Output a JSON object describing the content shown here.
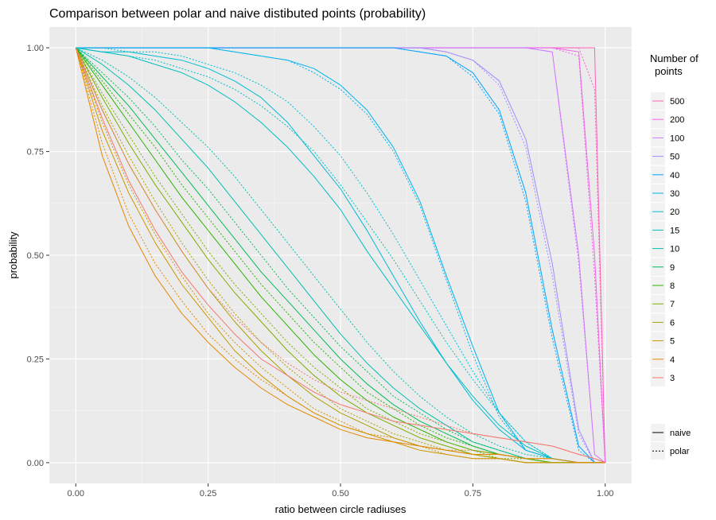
{
  "chart_data": {
    "type": "line",
    "title": "Comparison between polar and naive distibuted points (probability)",
    "xlabel": "ratio between circle radiuses",
    "ylabel": "probability",
    "xlim": [
      -0.05,
      1.05
    ],
    "ylim": [
      -0.05,
      1.05
    ],
    "x_ticks": [
      0,
      0.25,
      0.5,
      0.75,
      1
    ],
    "x_tick_labels": [
      "0.00",
      "0.25",
      "0.50",
      "0.75",
      "1.00"
    ],
    "y_ticks": [
      0,
      0.25,
      0.5,
      0.75,
      1
    ],
    "y_tick_labels": [
      "0.00",
      "0.25",
      "0.50",
      "0.75",
      "1.00"
    ],
    "grid": true,
    "legend_color_title_lines": [
      "Number of",
      "points"
    ],
    "legend_placement": "right",
    "color_legend": [
      {
        "label": "500",
        "color": "#FF62BC"
      },
      {
        "label": "200",
        "color": "#F066EA"
      },
      {
        "label": "100",
        "color": "#D078FF"
      },
      {
        "label": "50",
        "color": "#A58AFF"
      },
      {
        "label": "40",
        "color": "#00A5FF"
      },
      {
        "label": "30",
        "color": "#00B4EF"
      },
      {
        "label": "20",
        "color": "#00BCD8"
      },
      {
        "label": "15",
        "color": "#00BFC4"
      },
      {
        "label": "10",
        "color": "#00C0AF"
      },
      {
        "label": "9",
        "color": "#00BC56"
      },
      {
        "label": "8",
        "color": "#29B400"
      },
      {
        "label": "7",
        "color": "#7CAE00"
      },
      {
        "label": "6",
        "color": "#ABA300"
      },
      {
        "label": "5",
        "color": "#CD9600"
      },
      {
        "label": "4",
        "color": "#E58700"
      },
      {
        "label": "3",
        "color": "#F8766D"
      }
    ],
    "linetype_legend": [
      {
        "label": "naive",
        "dash": "solid"
      },
      {
        "label": "polar",
        "dash": "dotted"
      }
    ],
    "x": [
      0,
      0.05,
      0.1,
      0.15,
      0.2,
      0.25,
      0.3,
      0.35,
      0.4,
      0.45,
      0.5,
      0.55,
      0.6,
      0.65,
      0.7,
      0.75,
      0.8,
      0.85,
      0.9,
      0.95,
      0.98,
      1
    ],
    "series": [
      {
        "name": "500 naive",
        "points_count": "500",
        "linetype": "naive",
        "values": [
          1.0,
          1.0,
          1.0,
          1.0,
          1.0,
          1.0,
          1.0,
          1.0,
          1.0,
          1.0,
          1.0,
          1.0,
          1.0,
          1.0,
          1.0,
          1.0,
          1.0,
          1.0,
          1.0,
          1.0,
          1.0,
          0.0
        ]
      },
      {
        "name": "500 polar",
        "points_count": "500",
        "linetype": "polar",
        "values": [
          1.0,
          1.0,
          1.0,
          1.0,
          1.0,
          1.0,
          1.0,
          1.0,
          1.0,
          1.0,
          1.0,
          1.0,
          1.0,
          1.0,
          1.0,
          1.0,
          1.0,
          1.0,
          1.0,
          1.0,
          0.9,
          0.0
        ]
      },
      {
        "name": "200 naive",
        "points_count": "200",
        "linetype": "naive",
        "values": [
          1.0,
          1.0,
          1.0,
          1.0,
          1.0,
          1.0,
          1.0,
          1.0,
          1.0,
          1.0,
          1.0,
          1.0,
          1.0,
          1.0,
          1.0,
          1.0,
          1.0,
          1.0,
          1.0,
          0.99,
          0.5,
          0.0
        ]
      },
      {
        "name": "200 polar",
        "points_count": "200",
        "linetype": "polar",
        "values": [
          1.0,
          1.0,
          1.0,
          1.0,
          1.0,
          1.0,
          1.0,
          1.0,
          1.0,
          1.0,
          1.0,
          1.0,
          1.0,
          1.0,
          1.0,
          1.0,
          1.0,
          1.0,
          1.0,
          0.98,
          0.45,
          0.0
        ]
      },
      {
        "name": "100 naive",
        "points_count": "100",
        "linetype": "naive",
        "values": [
          1.0,
          1.0,
          1.0,
          1.0,
          1.0,
          1.0,
          1.0,
          1.0,
          1.0,
          1.0,
          1.0,
          1.0,
          1.0,
          1.0,
          1.0,
          1.0,
          1.0,
          1.0,
          0.99,
          0.5,
          0.02,
          0.0
        ]
      },
      {
        "name": "100 polar",
        "points_count": "100",
        "linetype": "polar",
        "values": [
          1.0,
          1.0,
          1.0,
          1.0,
          1.0,
          1.0,
          1.0,
          1.0,
          1.0,
          1.0,
          1.0,
          1.0,
          1.0,
          1.0,
          1.0,
          1.0,
          1.0,
          1.0,
          0.99,
          0.48,
          0.02,
          0.0
        ]
      },
      {
        "name": "50 naive",
        "points_count": "50",
        "linetype": "naive",
        "values": [
          1.0,
          1.0,
          1.0,
          1.0,
          1.0,
          1.0,
          1.0,
          1.0,
          1.0,
          1.0,
          1.0,
          1.0,
          1.0,
          1.0,
          0.99,
          0.97,
          0.92,
          0.78,
          0.48,
          0.08,
          0.0,
          0.0
        ]
      },
      {
        "name": "50 polar",
        "points_count": "50",
        "linetype": "polar",
        "values": [
          1.0,
          1.0,
          1.0,
          1.0,
          1.0,
          1.0,
          1.0,
          1.0,
          1.0,
          1.0,
          1.0,
          1.0,
          1.0,
          1.0,
          0.99,
          0.97,
          0.91,
          0.76,
          0.45,
          0.07,
          0.0,
          0.0
        ]
      },
      {
        "name": "40 naive",
        "points_count": "40",
        "linetype": "naive",
        "values": [
          1.0,
          1.0,
          1.0,
          1.0,
          1.0,
          1.0,
          1.0,
          1.0,
          1.0,
          1.0,
          1.0,
          1.0,
          1.0,
          0.99,
          0.98,
          0.94,
          0.85,
          0.65,
          0.32,
          0.04,
          0.0,
          0.0
        ]
      },
      {
        "name": "40 polar",
        "points_count": "40",
        "linetype": "polar",
        "values": [
          1.0,
          1.0,
          1.0,
          1.0,
          1.0,
          1.0,
          1.0,
          1.0,
          1.0,
          1.0,
          1.0,
          1.0,
          1.0,
          0.99,
          0.98,
          0.93,
          0.84,
          0.63,
          0.3,
          0.03,
          0.0,
          0.0
        ]
      },
      {
        "name": "30 naive",
        "points_count": "30",
        "linetype": "naive",
        "values": [
          1.0,
          1.0,
          1.0,
          1.0,
          1.0,
          1.0,
          0.99,
          0.98,
          0.97,
          0.95,
          0.91,
          0.85,
          0.76,
          0.63,
          0.45,
          0.28,
          0.12,
          0.03,
          0.01,
          0.0,
          0.0,
          0.0
        ]
      },
      {
        "name": "30 polar",
        "points_count": "30",
        "linetype": "polar",
        "values": [
          1.0,
          1.0,
          1.0,
          1.0,
          1.0,
          1.0,
          0.99,
          0.98,
          0.97,
          0.94,
          0.9,
          0.84,
          0.75,
          0.62,
          0.44,
          0.26,
          0.11,
          0.03,
          0.01,
          0.0,
          0.0,
          0.0
        ]
      },
      {
        "name": "20 naive",
        "points_count": "20",
        "linetype": "naive",
        "values": [
          1.0,
          0.99,
          0.99,
          0.98,
          0.97,
          0.95,
          0.92,
          0.88,
          0.82,
          0.74,
          0.66,
          0.56,
          0.45,
          0.34,
          0.24,
          0.15,
          0.08,
          0.03,
          0.01,
          0.0,
          0.0,
          0.0
        ]
      },
      {
        "name": "20 polar",
        "points_count": "20",
        "linetype": "polar",
        "values": [
          1.0,
          1.0,
          0.99,
          0.99,
          0.98,
          0.96,
          0.94,
          0.91,
          0.87,
          0.81,
          0.74,
          0.65,
          0.55,
          0.44,
          0.33,
          0.22,
          0.12,
          0.05,
          0.01,
          0.0,
          0.0,
          0.0
        ]
      },
      {
        "name": "15 naive",
        "points_count": "15",
        "linetype": "naive",
        "values": [
          1.0,
          0.99,
          0.98,
          0.96,
          0.94,
          0.91,
          0.87,
          0.82,
          0.76,
          0.69,
          0.61,
          0.51,
          0.42,
          0.33,
          0.24,
          0.16,
          0.09,
          0.04,
          0.01,
          0.0,
          0.0,
          0.0
        ]
      },
      {
        "name": "15 polar",
        "points_count": "15",
        "linetype": "polar",
        "values": [
          1.0,
          0.99,
          0.98,
          0.97,
          0.95,
          0.93,
          0.9,
          0.86,
          0.81,
          0.75,
          0.67,
          0.58,
          0.49,
          0.39,
          0.29,
          0.2,
          0.12,
          0.05,
          0.01,
          0.0,
          0.0,
          0.0
        ]
      },
      {
        "name": "10 naive",
        "points_count": "10",
        "linetype": "naive",
        "values": [
          1.0,
          0.96,
          0.91,
          0.85,
          0.78,
          0.71,
          0.63,
          0.55,
          0.47,
          0.39,
          0.31,
          0.24,
          0.18,
          0.13,
          0.09,
          0.05,
          0.03,
          0.01,
          0.0,
          0.0,
          0.0,
          0.0
        ]
      },
      {
        "name": "10 polar",
        "points_count": "10",
        "linetype": "polar",
        "values": [
          1.0,
          0.97,
          0.93,
          0.88,
          0.82,
          0.76,
          0.69,
          0.61,
          0.53,
          0.45,
          0.37,
          0.29,
          0.22,
          0.16,
          0.11,
          0.07,
          0.04,
          0.02,
          0.01,
          0.0,
          0.0,
          0.0
        ]
      },
      {
        "name": "9 naive",
        "points_count": "9",
        "linetype": "naive",
        "values": [
          1.0,
          0.93,
          0.86,
          0.78,
          0.7,
          0.62,
          0.54,
          0.46,
          0.39,
          0.32,
          0.25,
          0.19,
          0.14,
          0.1,
          0.07,
          0.04,
          0.02,
          0.01,
          0.0,
          0.0,
          0.0,
          0.0
        ]
      },
      {
        "name": "9 polar",
        "points_count": "9",
        "linetype": "polar",
        "values": [
          1.0,
          0.94,
          0.88,
          0.81,
          0.73,
          0.66,
          0.58,
          0.5,
          0.42,
          0.35,
          0.28,
          0.22,
          0.16,
          0.12,
          0.08,
          0.05,
          0.03,
          0.01,
          0.0,
          0.0,
          0.0,
          0.0
        ]
      },
      {
        "name": "8 naive",
        "points_count": "8",
        "linetype": "naive",
        "values": [
          1.0,
          0.91,
          0.82,
          0.73,
          0.64,
          0.56,
          0.48,
          0.4,
          0.33,
          0.26,
          0.2,
          0.15,
          0.11,
          0.08,
          0.05,
          0.03,
          0.02,
          0.01,
          0.0,
          0.0,
          0.0,
          0.0
        ]
      },
      {
        "name": "8 polar",
        "points_count": "8",
        "linetype": "polar",
        "values": [
          1.0,
          0.92,
          0.84,
          0.76,
          0.67,
          0.59,
          0.51,
          0.43,
          0.36,
          0.29,
          0.23,
          0.17,
          0.13,
          0.09,
          0.06,
          0.04,
          0.02,
          0.01,
          0.0,
          0.0,
          0.0,
          0.0
        ]
      },
      {
        "name": "7 naive",
        "points_count": "7",
        "linetype": "naive",
        "values": [
          1.0,
          0.88,
          0.77,
          0.67,
          0.58,
          0.49,
          0.41,
          0.34,
          0.27,
          0.21,
          0.16,
          0.12,
          0.09,
          0.06,
          0.04,
          0.02,
          0.01,
          0.0,
          0.0,
          0.0,
          0.0,
          0.0
        ]
      },
      {
        "name": "7 polar",
        "points_count": "7",
        "linetype": "polar",
        "values": [
          1.0,
          0.89,
          0.79,
          0.69,
          0.6,
          0.51,
          0.43,
          0.36,
          0.29,
          0.23,
          0.18,
          0.13,
          0.1,
          0.07,
          0.05,
          0.03,
          0.01,
          0.01,
          0.0,
          0.0,
          0.0,
          0.0
        ]
      },
      {
        "name": "6 naive",
        "points_count": "6",
        "linetype": "naive",
        "values": [
          1.0,
          0.85,
          0.72,
          0.61,
          0.51,
          0.42,
          0.34,
          0.27,
          0.21,
          0.16,
          0.12,
          0.09,
          0.06,
          0.04,
          0.03,
          0.02,
          0.01,
          0.0,
          0.0,
          0.0,
          0.0,
          0.0
        ]
      },
      {
        "name": "6 polar",
        "points_count": "6",
        "linetype": "polar",
        "values": [
          1.0,
          0.86,
          0.74,
          0.63,
          0.53,
          0.44,
          0.36,
          0.29,
          0.23,
          0.18,
          0.13,
          0.1,
          0.07,
          0.05,
          0.03,
          0.02,
          0.01,
          0.0,
          0.0,
          0.0,
          0.0,
          0.0
        ]
      },
      {
        "name": "5 naive",
        "points_count": "5",
        "linetype": "naive",
        "values": [
          1.0,
          0.8,
          0.65,
          0.53,
          0.43,
          0.35,
          0.27,
          0.21,
          0.16,
          0.12,
          0.09,
          0.07,
          0.05,
          0.03,
          0.02,
          0.01,
          0.01,
          0.0,
          0.0,
          0.0,
          0.0,
          0.0
        ]
      },
      {
        "name": "5 polar",
        "points_count": "5",
        "linetype": "polar",
        "values": [
          1.0,
          0.82,
          0.67,
          0.55,
          0.45,
          0.36,
          0.29,
          0.23,
          0.18,
          0.13,
          0.1,
          0.07,
          0.05,
          0.04,
          0.02,
          0.01,
          0.01,
          0.0,
          0.0,
          0.0,
          0.0,
          0.0
        ]
      },
      {
        "name": "4 naive",
        "points_count": "4",
        "linetype": "naive",
        "values": [
          1.0,
          0.74,
          0.57,
          0.45,
          0.36,
          0.29,
          0.23,
          0.18,
          0.14,
          0.11,
          0.08,
          0.06,
          0.05,
          0.04,
          0.03,
          0.02,
          0.02,
          0.01,
          0.01,
          0.0,
          0.0,
          0.0
        ]
      },
      {
        "name": "4 polar",
        "points_count": "4",
        "linetype": "polar",
        "values": [
          1.0,
          0.77,
          0.6,
          0.48,
          0.39,
          0.31,
          0.25,
          0.2,
          0.16,
          0.12,
          0.09,
          0.07,
          0.06,
          0.04,
          0.03,
          0.03,
          0.02,
          0.01,
          0.01,
          0.0,
          0.0,
          0.0
        ]
      },
      {
        "name": "3 naive",
        "points_count": "3",
        "linetype": "naive",
        "values": [
          1.0,
          0.83,
          0.68,
          0.56,
          0.46,
          0.38,
          0.31,
          0.25,
          0.21,
          0.17,
          0.14,
          0.12,
          0.1,
          0.09,
          0.08,
          0.07,
          0.06,
          0.05,
          0.04,
          0.02,
          0.01,
          0.0
        ]
      },
      {
        "name": "3 polar",
        "points_count": "3",
        "linetype": "polar",
        "values": [
          1.0,
          0.85,
          0.72,
          0.61,
          0.51,
          0.42,
          0.35,
          0.29,
          0.24,
          0.2,
          0.17,
          0.15,
          0.13,
          0.11,
          0.09,
          0.07,
          0.06,
          0.05,
          0.04,
          0.02,
          0.01,
          0.0
        ]
      }
    ]
  }
}
